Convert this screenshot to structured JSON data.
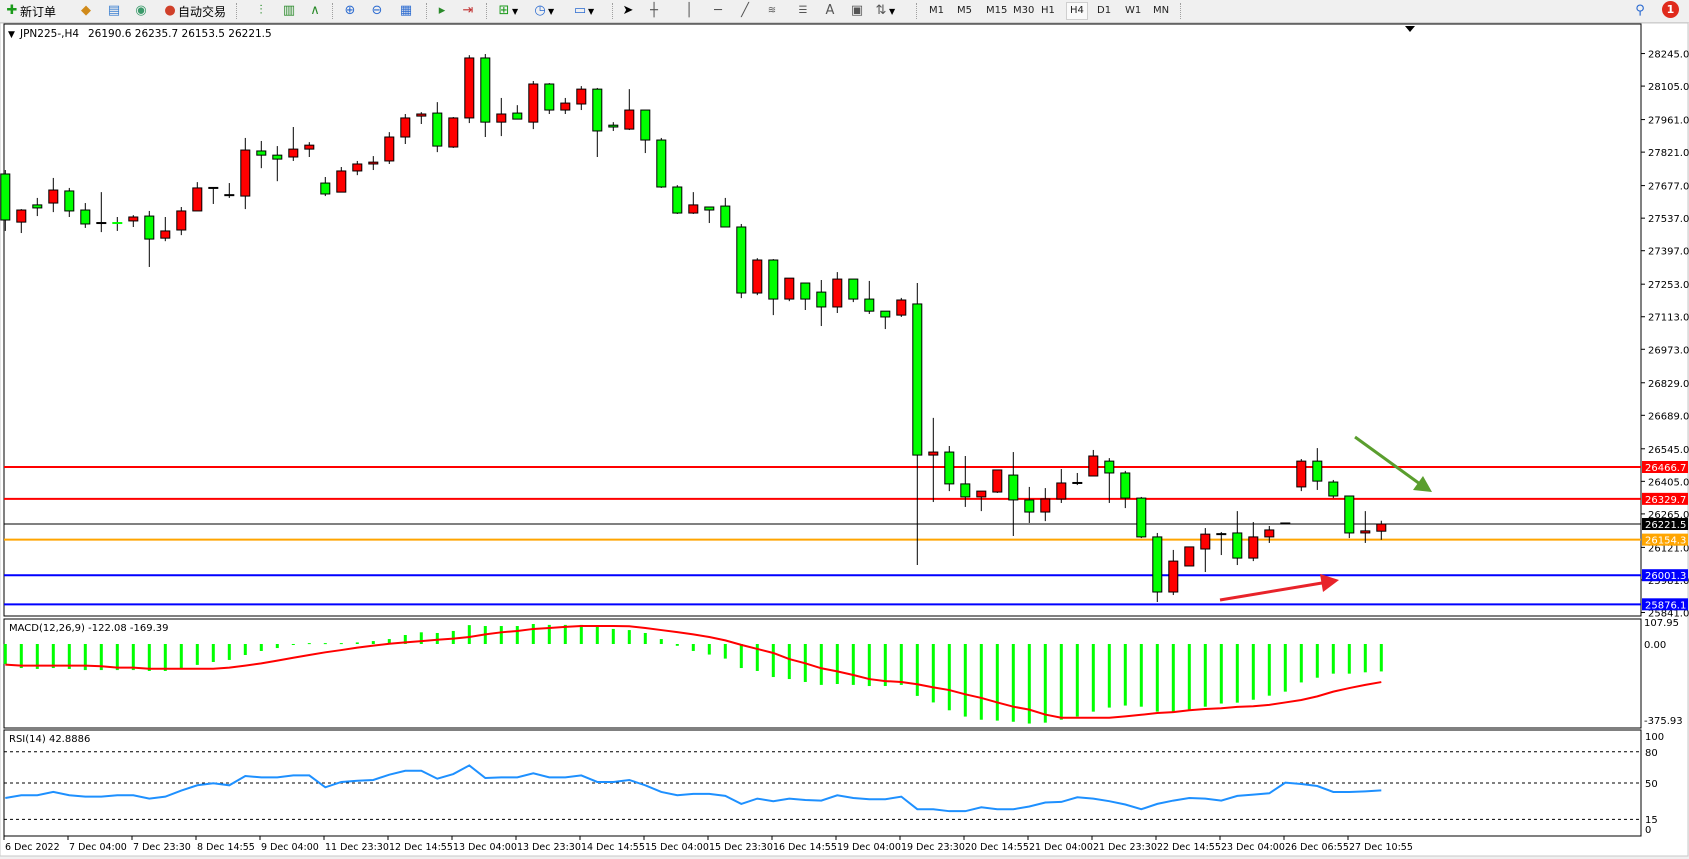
{
  "toolbar": {
    "new_order_label": "新订单",
    "auto_trading_label": "自动交易",
    "timeframes": [
      "M1",
      "M5",
      "M15",
      "M30",
      "H1",
      "H4",
      "D1",
      "W1",
      "MN"
    ],
    "active_timeframe": "H4",
    "notification_count": "1",
    "icons": [
      "new-order-icon",
      "market-watch-icon",
      "navigator-icon",
      "signals-icon",
      "auto-trading-icon",
      "bar-chart-icon",
      "candlestick-icon",
      "line-chart-icon",
      "zoom-in-icon",
      "zoom-out-icon",
      "tile-windows-icon",
      "auto-scroll-icon",
      "chart-shift-icon",
      "indicators-icon",
      "periods-icon",
      "templates-icon",
      "cursor-icon",
      "crosshair-icon",
      "vertical-line-icon",
      "horizontal-line-icon",
      "trendline-icon",
      "fibonacci-icon",
      "fibonacci-fan-icon",
      "text-icon",
      "text-label-icon",
      "arrows-icon",
      "search-icon",
      "notification-icon"
    ]
  },
  "chart": {
    "symbol": "JPN225-,H4",
    "ohlc": "26190.6 26235.7 26153.5 26221.5",
    "bull_color": "#ff0000",
    "bear_color": "#00ff00"
  },
  "chart_data": [
    {
      "type": "candlestick",
      "fields": [
        "open",
        "high",
        "low",
        "close"
      ],
      "ylim": [
        25841.0,
        28245.0
      ],
      "y_ticks": [
        28245.0,
        28105.0,
        27961.0,
        27821.0,
        27677.0,
        27537.0,
        27397.0,
        27253.0,
        27113.0,
        26973.0,
        26829.0,
        26689.0,
        26545.0,
        26405.0,
        26265.0,
        26121.0,
        25981.0,
        25841.0
      ],
      "x_tick_labels": [
        "6 Dec 2022",
        "7 Dec 04:00",
        "7 Dec 23:30",
        "8 Dec 14:55",
        "9 Dec 04:00",
        "11 Dec 23:30",
        "12 Dec 14:55",
        "13 Dec 04:00",
        "13 Dec 23:30",
        "14 Dec 14:55",
        "15 Dec 04:00",
        "15 Dec 23:30",
        "16 Dec 14:55",
        "19 Dec 04:00",
        "19 Dec 23:30",
        "20 Dec 14:55",
        "21 Dec 04:00",
        "21 Dec 23:30",
        "22 Dec 14:55",
        "23 Dec 04:00",
        "26 Dec 06:55",
        "27 Dec 10:55"
      ],
      "horizontal_lines": [
        {
          "value": 26466.7,
          "label": "26466.7",
          "color": "#ff0000"
        },
        {
          "value": 26329.7,
          "label": "26329.7",
          "color": "#ff0000"
        },
        {
          "value": 26221.5,
          "label": "26221.5",
          "color": "#000000"
        },
        {
          "value": 26154.3,
          "label": "26154.3",
          "color": "#ffa500"
        },
        {
          "value": 26001.3,
          "label": "26001.3",
          "color": "#0000ff"
        },
        {
          "value": 25876.1,
          "label": "25876.1",
          "color": "#0000ff"
        }
      ],
      "annotations": [
        {
          "type": "arrow",
          "color": "#5a9e2e",
          "direction": "down-right"
        },
        {
          "type": "arrow",
          "color": "#e8232a",
          "direction": "up-right"
        }
      ],
      "candles": [
        [
          27727,
          27744,
          27482,
          27529
        ],
        [
          27520,
          27576,
          27473,
          27572
        ],
        [
          27594,
          27624,
          27546,
          27581
        ],
        [
          27602,
          27710,
          27563,
          27658
        ],
        [
          27654,
          27667,
          27542,
          27568
        ],
        [
          27572,
          27602,
          27495,
          27512
        ],
        [
          27516,
          27649,
          27477,
          27516
        ],
        [
          27516,
          27542,
          27482,
          27514
        ],
        [
          27525,
          27550,
          27499,
          27542
        ],
        [
          27546,
          27568,
          27327,
          27447
        ],
        [
          27451,
          27542,
          27438,
          27482
        ],
        [
          27486,
          27585,
          27464,
          27568
        ],
        [
          27568,
          27692,
          27568,
          27667
        ],
        [
          27667,
          27667,
          27598,
          27667
        ],
        [
          27636,
          27688,
          27624,
          27636
        ],
        [
          27632,
          27882,
          27576,
          27830
        ],
        [
          27826,
          27869,
          27752,
          27808
        ],
        [
          27808,
          27847,
          27696,
          27791
        ],
        [
          27800,
          27929,
          27783,
          27834
        ],
        [
          27834,
          27864,
          27800,
          27851
        ],
        [
          27688,
          27714,
          27632,
          27641
        ],
        [
          27649,
          27757,
          27649,
          27740
        ],
        [
          27740,
          27783,
          27722,
          27770
        ],
        [
          27770,
          27804,
          27744,
          27778
        ],
        [
          27783,
          27907,
          27770,
          27886
        ],
        [
          27886,
          27985,
          27856,
          27968
        ],
        [
          27976,
          27993,
          27942,
          27985
        ],
        [
          27989,
          28036,
          27821,
          27847
        ],
        [
          27843,
          27972,
          27839,
          27968
        ],
        [
          27968,
          28238,
          27946,
          28226
        ],
        [
          28226,
          28243,
          27886,
          27950
        ],
        [
          27950,
          28054,
          27890,
          27985
        ],
        [
          27989,
          28023,
          27963,
          27963
        ],
        [
          27950,
          28127,
          27920,
          28114
        ],
        [
          28114,
          28118,
          27985,
          28002
        ],
        [
          28002,
          28054,
          27985,
          28032
        ],
        [
          28028,
          28105,
          28002,
          28092
        ],
        [
          28092,
          28097,
          27800,
          27912
        ],
        [
          27937,
          27950,
          27912,
          27929
        ],
        [
          27920,
          28092,
          27916,
          28002
        ],
        [
          28002,
          28002,
          27817,
          27873
        ],
        [
          27873,
          27882,
          27667,
          27671
        ],
        [
          27671,
          27679,
          27555,
          27559
        ],
        [
          27559,
          27649,
          27555,
          27594
        ],
        [
          27585,
          27585,
          27516,
          27572
        ],
        [
          27589,
          27624,
          27499,
          27499
        ],
        [
          27499,
          27512,
          27193,
          27215
        ],
        [
          27215,
          27365,
          27206,
          27357
        ],
        [
          27357,
          27361,
          27120,
          27189
        ],
        [
          27189,
          27279,
          27180,
          27279
        ],
        [
          27258,
          27258,
          27142,
          27189
        ],
        [
          27219,
          27271,
          27073,
          27155
        ],
        [
          27155,
          27305,
          27129,
          27275
        ],
        [
          27275,
          27275,
          27176,
          27189
        ],
        [
          27189,
          27267,
          27125,
          27137
        ],
        [
          27137,
          27137,
          27060,
          27112
        ],
        [
          27120,
          27194,
          27112,
          27185
        ],
        [
          27168,
          27258,
          26045,
          26518
        ],
        [
          26518,
          26678,
          26316,
          26531
        ],
        [
          26531,
          26557,
          26363,
          26394
        ],
        [
          26394,
          26514,
          26295,
          26338
        ],
        [
          26338,
          26363,
          26277,
          26363
        ],
        [
          26359,
          26454,
          26355,
          26454
        ],
        [
          26432,
          26531,
          26170,
          26325
        ],
        [
          26325,
          26381,
          26226,
          26273
        ],
        [
          26273,
          26376,
          26234,
          26329
        ],
        [
          26329,
          26458,
          26312,
          26398
        ],
        [
          26398,
          26441,
          26389,
          26398
        ],
        [
          26428,
          26540,
          26428,
          26514
        ],
        [
          26492,
          26505,
          26312,
          26441
        ],
        [
          26441,
          26450,
          26290,
          26333
        ],
        [
          26333,
          26338,
          26161,
          26166
        ],
        [
          26166,
          26183,
          25886,
          25929
        ],
        [
          25929,
          26110,
          25916,
          26062
        ],
        [
          26041,
          26123,
          26041,
          26123
        ],
        [
          26114,
          26204,
          26015,
          26178
        ],
        [
          26178,
          26187,
          26088,
          26178
        ],
        [
          26183,
          26277,
          26045,
          26075
        ],
        [
          26075,
          26230,
          26062,
          26166
        ],
        [
          26166,
          26213,
          26140,
          26196
        ],
        [
          26226,
          26226,
          26222,
          26222
        ],
        [
          26381,
          26501,
          26363,
          26492
        ],
        [
          26492,
          26548,
          26368,
          26406
        ],
        [
          26402,
          26411,
          26333,
          26342
        ],
        [
          26342,
          26342,
          26161,
          26183
        ],
        [
          26183,
          26277,
          26140,
          26192
        ],
        [
          26190.6,
          26235.7,
          26153.5,
          26221.5
        ]
      ]
    },
    {
      "type": "bar",
      "label": "MACD(12,26,9) -122.08 -169.39",
      "ylim": [
        -375.93,
        107.95
      ],
      "y_ticks": [
        "107.95",
        "0.00",
        "-375.93"
      ],
      "histogram_color": "#00ff00",
      "signal_color": "#ff0000",
      "histogram": [
        -89,
        -107,
        -111,
        -107,
        -111,
        -116,
        -116,
        -116,
        -116,
        -120,
        -120,
        -111,
        -93,
        -80,
        -71,
        -49,
        -31,
        -18,
        -4,
        4,
        4,
        4,
        7,
        13,
        22,
        40,
        52,
        49,
        58,
        84,
        80,
        80,
        80,
        89,
        85,
        85,
        85,
        80,
        67,
        62,
        49,
        22,
        -8,
        -31,
        -47,
        -65,
        -107,
        -120,
        -147,
        -156,
        -169,
        -182,
        -178,
        -182,
        -187,
        -187,
        -182,
        -231,
        -260,
        -295,
        -323,
        -337,
        -341,
        -346,
        -354,
        -350,
        -337,
        -323,
        -301,
        -283,
        -274,
        -279,
        -301,
        -301,
        -292,
        -279,
        -265,
        -261,
        -248,
        -230,
        -212,
        -171,
        -150,
        -132,
        -132,
        -126,
        -122.08
      ],
      "signal": [
        -92,
        -96,
        -96,
        -96,
        -96,
        -96,
        -99,
        -105,
        -105,
        -110,
        -110,
        -110,
        -110,
        -110,
        -105,
        -96,
        -86,
        -74,
        -61,
        -49,
        -37,
        -27,
        -16,
        -7,
        1,
        7,
        13,
        19,
        24,
        31,
        43,
        52,
        58,
        67,
        71,
        76,
        80,
        80,
        80,
        79,
        71,
        62,
        53,
        43,
        31,
        16,
        -4,
        -22,
        -40,
        -67,
        -86,
        -108,
        -122,
        -138,
        -156,
        -165,
        -169,
        -179,
        -193,
        -205,
        -224,
        -240,
        -260,
        -279,
        -292,
        -314,
        -328,
        -328,
        -328,
        -328,
        -322,
        -315,
        -307,
        -303,
        -295,
        -289,
        -286,
        -280,
        -277,
        -271,
        -260,
        -249,
        -233,
        -212,
        -196,
        -182,
        -169.39
      ]
    },
    {
      "type": "line",
      "label": "RSI(14) 42.8886",
      "ylim": [
        0,
        100
      ],
      "y_ticks": [
        "100",
        "80",
        "50",
        "15",
        "0"
      ],
      "levels": [
        80,
        50,
        15
      ],
      "line_color": "#1e90ff",
      "values": [
        35.6,
        38.2,
        38.2,
        41.4,
        38.2,
        36.9,
        36.9,
        38.2,
        38.2,
        35.0,
        36.9,
        42.7,
        47.8,
        49.7,
        47.8,
        56.7,
        55.4,
        55.4,
        57.3,
        57.3,
        45.9,
        51.0,
        52.2,
        52.9,
        58.0,
        61.8,
        61.8,
        54.1,
        58.6,
        66.9,
        54.8,
        55.4,
        55.4,
        59.3,
        55.4,
        55.4,
        57.3,
        51.0,
        51.0,
        52.9,
        47.8,
        41.4,
        38.2,
        39.5,
        39.5,
        37.6,
        29.9,
        35.0,
        32.5,
        35.0,
        33.7,
        33.1,
        38.2,
        35.6,
        34.4,
        34.4,
        36.9,
        24.8,
        24.8,
        22.9,
        22.9,
        26.7,
        24.8,
        24.8,
        27.4,
        31.2,
        31.8,
        36.3,
        35.0,
        32.5,
        29.3,
        24.8,
        29.9,
        33.1,
        35.6,
        35.0,
        33.1,
        37.6,
        38.8,
        40.1,
        50.3,
        49.0,
        47.1,
        41.4,
        41.4,
        42.0,
        42.8886
      ]
    }
  ]
}
